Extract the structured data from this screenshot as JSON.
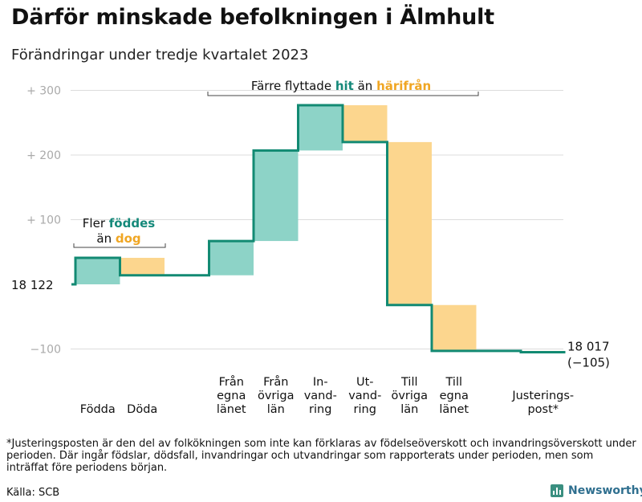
{
  "title": "Därför minskade befolkningen i Älmhult",
  "subtitle": "Förändringar under tredje kvartalet 2023",
  "colors": {
    "increase": "#8dd3c7",
    "decrease": "#fcd68e",
    "line": "#128a73",
    "hit": "#15897a",
    "harifran": "#f0a623",
    "grid": "#dcdcdc",
    "tick": "#aaaaaa"
  },
  "chart_data": {
    "type": "waterfall",
    "start_label": "18  122",
    "end_labels": [
      "18 017",
      "(−105)"
    ],
    "y_ticks": [
      {
        "value": 300,
        "label": "+  300"
      },
      {
        "value": 200,
        "label": "+  200"
      },
      {
        "value": 100,
        "label": "+  100"
      },
      {
        "value": -100,
        "label": "−100"
      }
    ],
    "ylim": [
      -100,
      300
    ],
    "steps": [
      {
        "lines": [
          "Födda"
        ],
        "start": 0,
        "end": 41,
        "kind": "increase"
      },
      {
        "lines": [
          "Döda"
        ],
        "start": 41,
        "end": 14,
        "kind": "decrease"
      },
      {
        "lines": [],
        "start": 14,
        "end": 14,
        "kind": "none"
      },
      {
        "lines": [
          "Från",
          "egna",
          "länet"
        ],
        "start": 14,
        "end": 67,
        "kind": "increase"
      },
      {
        "lines": [
          "Från",
          "övriga",
          "län"
        ],
        "start": 67,
        "end": 207,
        "kind": "increase"
      },
      {
        "lines": [
          "In-",
          "vand-",
          "ring"
        ],
        "start": 207,
        "end": 277,
        "kind": "increase"
      },
      {
        "lines": [
          "Ut-",
          "vand-",
          "ring"
        ],
        "start": 277,
        "end": 220,
        "kind": "decrease"
      },
      {
        "lines": [
          "Till",
          "övriga",
          "län"
        ],
        "start": 220,
        "end": -32,
        "kind": "decrease"
      },
      {
        "lines": [
          "Till",
          "egna",
          "länet"
        ],
        "start": -32,
        "end": -103,
        "kind": "decrease"
      },
      {
        "lines": [],
        "start": -103,
        "end": -103,
        "kind": "none"
      },
      {
        "lines": [
          "Justerings-",
          "post*"
        ],
        "start": -103,
        "end": -105,
        "kind": "decrease"
      }
    ],
    "annotations": {
      "births": {
        "line1": "Fler ",
        "line1_bold": "föddes",
        "line2": "än ",
        "line2_bold": "dog"
      },
      "migration": {
        "prefix": "Färre flyttade ",
        "bold1": "hit",
        "middle": "  än ",
        "bold2": "härifrån"
      }
    }
  },
  "footnote": "*Justeringsposten är den del av folkökningen som inte kan förklaras av födelseöverskott och invandringsöverskott under perioden. Där ingår födslar, dödsfall, invandringar och utvandringar som rapporterats under perioden, men som inträffat före periodens början.",
  "source": "Källa: SCB",
  "brand": "Newsworthy"
}
